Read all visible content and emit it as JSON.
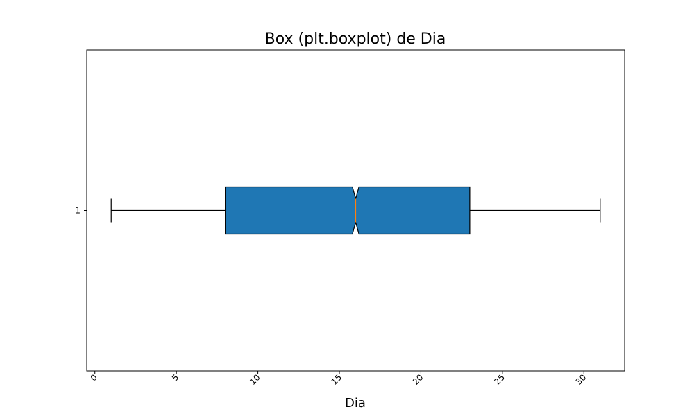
{
  "chart_data": {
    "type": "boxplot",
    "title": "Box (plt.boxplot) de Dia",
    "xlabel": "Dia",
    "ylabel": "",
    "orientation": "horizontal",
    "notch": true,
    "xlim": [
      -0.5,
      32.5
    ],
    "xticks": [
      0,
      5,
      10,
      15,
      20,
      25,
      30
    ],
    "xtick_rotation": 45,
    "categories": [
      "1"
    ],
    "boxes": [
      {
        "label": "1",
        "whisker_low": 1,
        "q1": 8,
        "median": 16,
        "q3": 23,
        "whisker_high": 31,
        "notch_low": 15.8,
        "notch_high": 16.2
      }
    ],
    "grid": false,
    "colors": {
      "box_fill": "#1f77b4",
      "median_line": "#ff7f0e",
      "edge": "#000000"
    }
  }
}
